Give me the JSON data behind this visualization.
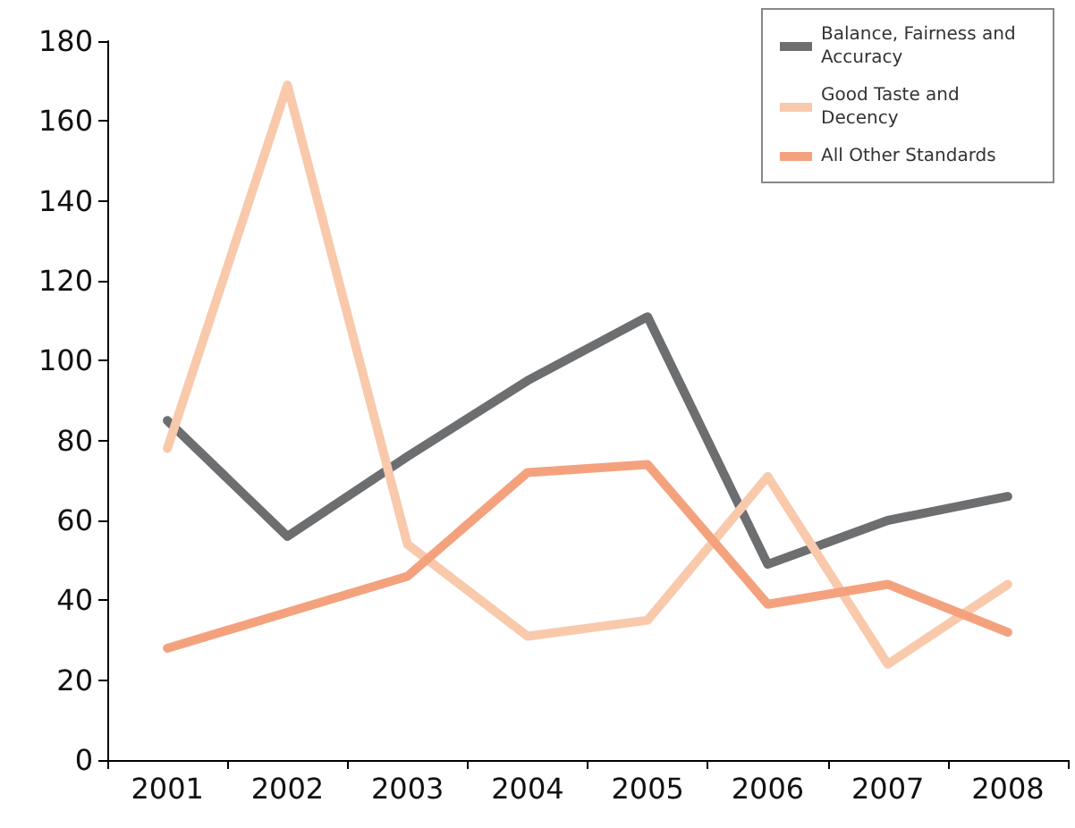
{
  "chart_data": {
    "type": "line",
    "categories": [
      "2001",
      "2002",
      "2003",
      "2004",
      "2005",
      "2006",
      "2007",
      "2008"
    ],
    "series": [
      {
        "name": "Balance, Fairness and Accuracy",
        "color": "#6d6e70",
        "values": [
          85,
          56,
          76,
          95,
          111,
          49,
          60,
          66
        ]
      },
      {
        "name": "Good Taste and Decency",
        "color": "#f9c9ab",
        "values": [
          78,
          169,
          54,
          31,
          35,
          71,
          24,
          44
        ]
      },
      {
        "name": "All Other Standards",
        "color": "#f4a27e",
        "values": [
          28,
          37,
          46,
          72,
          74,
          39,
          44,
          32
        ]
      }
    ],
    "ylim": [
      0,
      180
    ],
    "yticks": [
      0,
      20,
      40,
      60,
      80,
      100,
      120,
      140,
      160,
      180
    ],
    "grid": false,
    "legend": "top right",
    "marker": "none",
    "line_style": "solid"
  }
}
